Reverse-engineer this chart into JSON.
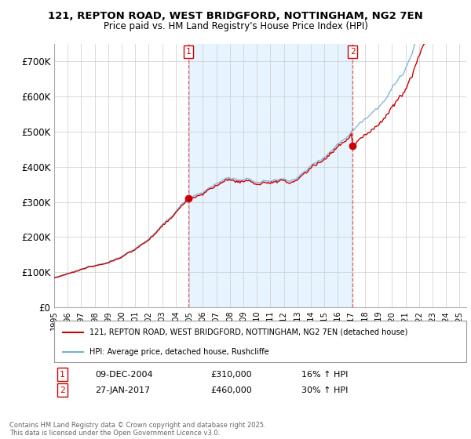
{
  "title_line1": "121, REPTON ROAD, WEST BRIDGFORD, NOTTINGHAM, NG2 7EN",
  "title_line2": "Price paid vs. HM Land Registry's House Price Index (HPI)",
  "background_color": "#ffffff",
  "plot_bg_color": "#ffffff",
  "grid_color": "#cccccc",
  "line1_color": "#cc0000",
  "line2_color": "#7ab0d4",
  "shade_color": "#ddeeff",
  "marker1_price": 310000,
  "marker2_price": 460000,
  "marker1_year": 2004.92,
  "marker2_year": 2017.08,
  "legend_label1": "121, REPTON ROAD, WEST BRIDGFORD, NOTTINGHAM, NG2 7EN (detached house)",
  "legend_label2": "HPI: Average price, detached house, Rushcliffe",
  "copyright_text": "Contains HM Land Registry data © Crown copyright and database right 2025.\nThis data is licensed under the Open Government Licence v3.0.",
  "sale1_date": "09-DEC-2004",
  "sale1_price": "£310,000",
  "sale1_hpi": "16% ↑ HPI",
  "sale2_date": "27-JAN-2017",
  "sale2_price": "£460,000",
  "sale2_hpi": "30% ↑ HPI",
  "ylim": [
    0,
    750000
  ],
  "yticks": [
    0,
    100000,
    200000,
    300000,
    400000,
    500000,
    600000,
    700000
  ],
  "ytick_labels": [
    "£0",
    "£100K",
    "£200K",
    "£300K",
    "£400K",
    "£500K",
    "£600K",
    "£700K"
  ],
  "xstart": 1995,
  "xend": 2025
}
